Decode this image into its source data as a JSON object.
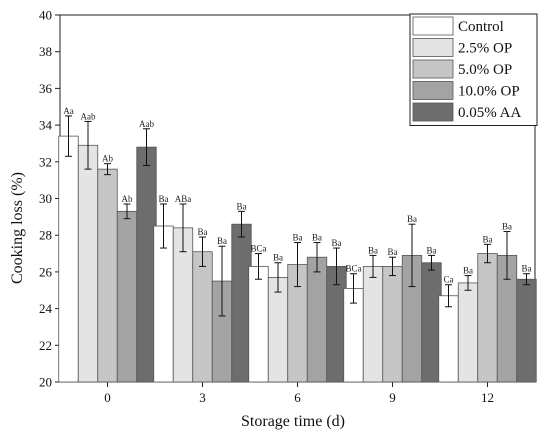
{
  "chart_data": {
    "type": "bar",
    "xlabel": "Storage time (d)",
    "ylabel": "Cooking loss (%)",
    "ylim": [
      20,
      40
    ],
    "yticks": [
      20,
      22,
      24,
      26,
      28,
      30,
      32,
      34,
      36,
      38,
      40
    ],
    "categories": [
      "0",
      "3",
      "6",
      "9",
      "12"
    ],
    "legend_position": "top-right",
    "series": [
      {
        "name": "Control",
        "color": "#ffffff",
        "values": [
          33.4,
          28.5,
          26.3,
          25.1,
          24.7
        ],
        "errors": [
          1.1,
          1.2,
          0.7,
          0.8,
          0.6
        ],
        "labels": [
          "Aa",
          "Ba",
          "BCa",
          "BCa",
          "Ca"
        ]
      },
      {
        "name": "2.5%  OP",
        "color": "#e4e4e4",
        "values": [
          32.9,
          28.4,
          25.7,
          26.3,
          25.4
        ],
        "errors": [
          1.3,
          1.3,
          0.8,
          0.6,
          0.4
        ],
        "labels": [
          "Aab",
          "ABa",
          "Ba",
          "Ba",
          "Ba"
        ]
      },
      {
        "name": "5.0%  OP",
        "color": "#c6c6c6",
        "values": [
          31.6,
          27.1,
          26.4,
          26.3,
          27.0
        ],
        "errors": [
          0.3,
          0.8,
          1.2,
          0.5,
          0.5
        ],
        "labels": [
          "Ab",
          "Ba",
          "Ba",
          "Ba",
          "Ba"
        ]
      },
      {
        "name": "10.0% OP",
        "color": "#a3a3a3",
        "values": [
          29.3,
          25.5,
          26.8,
          26.9,
          26.9
        ],
        "errors": [
          0.4,
          1.9,
          0.8,
          1.7,
          1.3
        ],
        "labels": [
          "Ab",
          "Ba",
          "Ba",
          "Ba",
          "Ba"
        ]
      },
      {
        "name": "0.05% AA",
        "color": "#6d6d6d",
        "values": [
          32.8,
          28.6,
          26.3,
          26.5,
          25.6
        ],
        "errors": [
          1.0,
          0.7,
          1.0,
          0.4,
          0.3
        ],
        "labels": [
          "Aab",
          "Ba",
          "Ba",
          "Ba",
          "Ba"
        ]
      }
    ]
  }
}
